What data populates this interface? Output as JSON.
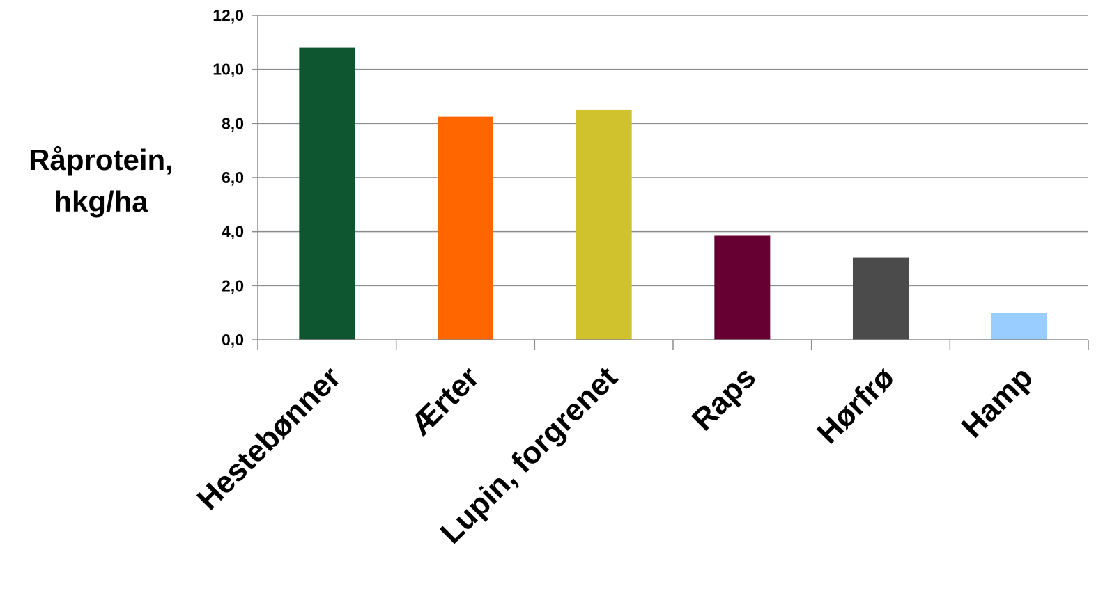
{
  "chart_data": {
    "type": "bar",
    "ylabel_lines": [
      "Råprotein,",
      "hkg/ha"
    ],
    "categories": [
      "Hestebønner",
      "Ærter",
      "Lupin, forgrenet",
      "Raps",
      "Hørfrø",
      "Hamp"
    ],
    "values": [
      10.8,
      8.25,
      8.5,
      3.85,
      3.05,
      1.0
    ],
    "colors": [
      "#0d5630",
      "#ff6600",
      "#cfc22d",
      "#660033",
      "#4b4b4b",
      "#99ccff"
    ],
    "ylim": [
      0,
      12
    ],
    "yticks": [
      0,
      2,
      4,
      6,
      8,
      10,
      12
    ],
    "ytick_labels": [
      "0,0",
      "2,0",
      "4,0",
      "6,0",
      "8,0",
      "10,0",
      "12,0"
    ],
    "grid": true,
    "legend": "none"
  }
}
